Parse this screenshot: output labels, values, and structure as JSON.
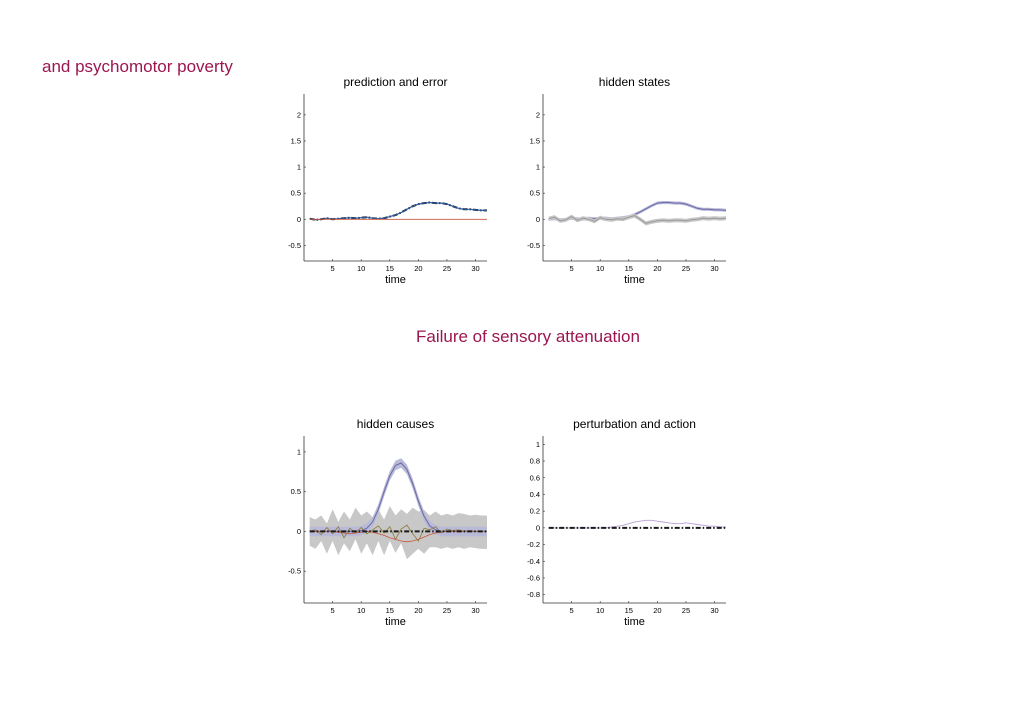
{
  "headings": {
    "left": "and psychomotor poverty",
    "center": "Failure of sensory attenuation"
  },
  "colors": {
    "heading": "#9b1650",
    "pred_line": "#1a1a1a",
    "error_line": "#c8553d",
    "ci_band_grey": "#c8c8c8",
    "ci_band_purple": "#b9b9d8",
    "mean_line_purple": "#6a6aa8",
    "action_line": "#b8a0d8"
  },
  "chart_data": [
    {
      "id": "prediction",
      "type": "line",
      "title": "prediction and error",
      "xlabel": "time",
      "ylabel": "",
      "xlim": [
        0,
        32
      ],
      "ylim": [
        -0.8,
        2.4
      ],
      "xticks": [
        5,
        10,
        15,
        20,
        25,
        30
      ],
      "yticks": [
        -0.5,
        0,
        0.5,
        1,
        1.5,
        2
      ],
      "ytick_labels": [
        "-0.5",
        "0",
        "0.5",
        "1",
        "1.5",
        "2"
      ],
      "x": [
        1,
        2,
        3,
        4,
        5,
        6,
        7,
        8,
        9,
        10,
        11,
        12,
        13,
        14,
        15,
        16,
        17,
        18,
        19,
        20,
        21,
        22,
        23,
        24,
        25,
        26,
        27,
        28,
        29,
        30,
        31,
        32
      ],
      "series": [
        {
          "style": "dashdot-black",
          "values": [
            0.01,
            -0.01,
            0.0,
            0.02,
            0.0,
            0.01,
            0.02,
            0.03,
            0.02,
            0.03,
            0.04,
            0.02,
            0.01,
            0.02,
            0.05,
            0.08,
            0.13,
            0.19,
            0.25,
            0.29,
            0.31,
            0.32,
            0.31,
            0.31,
            0.29,
            0.25,
            0.21,
            0.19,
            0.19,
            0.18,
            0.17,
            0.17
          ]
        },
        {
          "style": "blue",
          "values": [
            0.01,
            -0.01,
            0.0,
            0.02,
            0.0,
            0.01,
            0.02,
            0.03,
            0.02,
            0.03,
            0.04,
            0.02,
            0.01,
            0.02,
            0.05,
            0.08,
            0.13,
            0.19,
            0.25,
            0.29,
            0.31,
            0.32,
            0.31,
            0.31,
            0.29,
            0.25,
            0.21,
            0.19,
            0.19,
            0.18,
            0.17,
            0.17
          ]
        },
        {
          "style": "red",
          "values": [
            0,
            0,
            0,
            0,
            0,
            0,
            0,
            0,
            0,
            0,
            0,
            0,
            0,
            0,
            0,
            0,
            0,
            0,
            0,
            0,
            0,
            0,
            0,
            0,
            0,
            0,
            0,
            0,
            0,
            0,
            0,
            0
          ]
        }
      ]
    },
    {
      "id": "hidden_states",
      "type": "line",
      "title": "hidden states",
      "xlabel": "time",
      "ylabel": "",
      "xlim": [
        0,
        32
      ],
      "ylim": [
        -0.8,
        2.4
      ],
      "xticks": [
        5,
        10,
        15,
        20,
        25,
        30
      ],
      "yticks": [
        -0.5,
        0,
        0.5,
        1,
        1.5,
        2
      ],
      "ytick_labels": [
        "-0.5",
        "0",
        "0.5",
        "1",
        "1.5",
        "2"
      ],
      "x": [
        1,
        2,
        3,
        4,
        5,
        6,
        7,
        8,
        9,
        10,
        11,
        12,
        13,
        14,
        15,
        16,
        17,
        18,
        19,
        20,
        21,
        22,
        23,
        24,
        25,
        26,
        27,
        28,
        29,
        30,
        31,
        32
      ],
      "series": [
        {
          "style": "band-purple",
          "values": [
            0.0,
            0.01,
            -0.01,
            0.0,
            0.02,
            0.01,
            0.0,
            0.02,
            0.01,
            0.02,
            0.02,
            0.01,
            0.02,
            0.03,
            0.05,
            0.09,
            0.14,
            0.2,
            0.26,
            0.31,
            0.32,
            0.32,
            0.31,
            0.31,
            0.29,
            0.25,
            0.21,
            0.19,
            0.19,
            0.18,
            0.18,
            0.17
          ],
          "band": 0.03
        },
        {
          "style": "band-grey",
          "values": [
            0.01,
            0.04,
            -0.03,
            -0.01,
            0.05,
            -0.02,
            0.02,
            0.0,
            -0.04,
            0.03,
            0.0,
            -0.01,
            0.01,
            0.0,
            0.04,
            0.07,
            0.0,
            -0.08,
            -0.05,
            -0.03,
            -0.02,
            -0.03,
            -0.02,
            -0.02,
            -0.03,
            -0.01,
            0.0,
            0.02,
            0.01,
            0.02,
            0.01,
            0.02
          ],
          "band": 0.04
        }
      ]
    },
    {
      "id": "hidden_causes",
      "type": "line",
      "title": "hidden causes",
      "xlabel": "time",
      "ylabel": "",
      "xlim": [
        0,
        32
      ],
      "ylim": [
        -0.9,
        1.2
      ],
      "xticks": [
        5,
        10,
        15,
        20,
        25,
        30
      ],
      "yticks": [
        -0.5,
        0,
        0.5,
        1
      ],
      "ytick_labels": [
        "-0.5",
        "0",
        "0.5",
        "1"
      ],
      "x": [
        1,
        2,
        3,
        4,
        5,
        6,
        7,
        8,
        9,
        10,
        11,
        12,
        13,
        14,
        15,
        16,
        17,
        18,
        19,
        20,
        21,
        22,
        23,
        24,
        25,
        26,
        27,
        28,
        29,
        30,
        31,
        32
      ],
      "series": [
        {
          "style": "band-grey-wide",
          "values": [
            0,
            0,
            0,
            0,
            0,
            0,
            0,
            0,
            0,
            0,
            0,
            0,
            0,
            0,
            0,
            0,
            0,
            0,
            0,
            0,
            0,
            0,
            0,
            0,
            0,
            0,
            0,
            0,
            0,
            0,
            0,
            0
          ],
          "upper": [
            0.18,
            0.15,
            0.2,
            0.1,
            0.28,
            0.12,
            0.25,
            0.15,
            0.3,
            0.2,
            0.25,
            0.18,
            0.28,
            0.15,
            0.32,
            0.2,
            0.28,
            0.22,
            0.3,
            0.25,
            0.27,
            0.2,
            0.25,
            0.2,
            0.22,
            0.2,
            0.23,
            0.22,
            0.2,
            0.21,
            0.2,
            0.2
          ],
          "lower": [
            -0.18,
            -0.22,
            -0.12,
            -0.28,
            -0.12,
            -0.3,
            -0.15,
            -0.25,
            -0.1,
            -0.28,
            -0.15,
            -0.3,
            -0.12,
            -0.3,
            -0.12,
            -0.27,
            -0.15,
            -0.35,
            -0.28,
            -0.22,
            -0.28,
            -0.2,
            -0.2,
            -0.22,
            -0.2,
            -0.22,
            -0.2,
            -0.22,
            -0.2,
            -0.21,
            -0.22,
            -0.22
          ]
        },
        {
          "style": "band-purple",
          "values": [
            0,
            0,
            0,
            0,
            0,
            0,
            0,
            0,
            0,
            0.01,
            0.04,
            0.12,
            0.28,
            0.5,
            0.7,
            0.83,
            0.86,
            0.78,
            0.6,
            0.38,
            0.19,
            0.07,
            0.02,
            0,
            0,
            0,
            0,
            0,
            0,
            0,
            0,
            0
          ],
          "band": 0.06
        },
        {
          "style": "red",
          "values": [
            0,
            0,
            0,
            0,
            0,
            -0.01,
            -0.02,
            -0.03,
            -0.02,
            -0.01,
            0,
            -0.01,
            -0.03,
            -0.05,
            -0.08,
            -0.1,
            -0.12,
            -0.13,
            -0.12,
            -0.1,
            -0.07,
            -0.04,
            -0.02,
            -0.01,
            0,
            0,
            0,
            0,
            0,
            0,
            0,
            0
          ]
        },
        {
          "style": "olive",
          "values": [
            0,
            0.02,
            -0.04,
            0.05,
            -0.03,
            0.06,
            -0.08,
            0.04,
            -0.02,
            0.05,
            -0.03,
            0.02,
            0.07,
            -0.02,
            0.06,
            -0.1,
            0.03,
            0.08,
            -0.03,
            -0.12,
            0.04,
            0.02,
            0.06,
            -0.02,
            0.03,
            0.01,
            0.02,
            0,
            0.01,
            0,
            0,
            0
          ]
        },
        {
          "style": "dashdot-black",
          "values": [
            0,
            0,
            0,
            0,
            0,
            0,
            0,
            0,
            0,
            0,
            0,
            0,
            0,
            0,
            0,
            0,
            0,
            0,
            0,
            0,
            0,
            0,
            0,
            0,
            0,
            0,
            0,
            0,
            0,
            0,
            0,
            0
          ]
        }
      ]
    },
    {
      "id": "perturbation",
      "type": "line",
      "title": "perturbation and action",
      "xlabel": "time",
      "ylabel": "",
      "xlim": [
        0,
        32
      ],
      "ylim": [
        -0.9,
        1.1
      ],
      "xticks": [
        5,
        10,
        15,
        20,
        25,
        30
      ],
      "yticks": [
        -0.8,
        -0.6,
        -0.4,
        -0.2,
        0,
        0.2,
        0.4,
        0.6,
        0.8,
        1
      ],
      "ytick_labels": [
        "-0.8",
        "-0.6",
        "-0.4",
        "-0.2",
        "0",
        "0.2",
        "0.4",
        "0.6",
        "0.8",
        "1"
      ],
      "x": [
        1,
        2,
        3,
        4,
        5,
        6,
        7,
        8,
        9,
        10,
        11,
        12,
        13,
        14,
        15,
        16,
        17,
        18,
        19,
        20,
        21,
        22,
        23,
        24,
        25,
        26,
        27,
        28,
        29,
        30,
        31,
        32
      ],
      "series": [
        {
          "style": "action",
          "values": [
            0,
            0,
            0,
            0,
            0,
            0,
            0,
            0,
            0,
            0,
            0,
            0.01,
            0.02,
            0.03,
            0.05,
            0.07,
            0.08,
            0.09,
            0.09,
            0.08,
            0.07,
            0.06,
            0.05,
            0.05,
            0.06,
            0.05,
            0.04,
            0.03,
            0.02,
            0.02,
            0.01,
            0.01
          ]
        },
        {
          "style": "dashdot-black",
          "values": [
            0,
            0,
            0,
            0,
            0,
            0,
            0,
            0,
            0,
            0,
            0,
            0,
            0,
            0,
            0,
            0,
            0,
            0,
            0,
            0,
            0,
            0,
            0,
            0,
            0,
            0,
            0,
            0,
            0,
            0,
            0,
            0
          ]
        }
      ]
    }
  ]
}
